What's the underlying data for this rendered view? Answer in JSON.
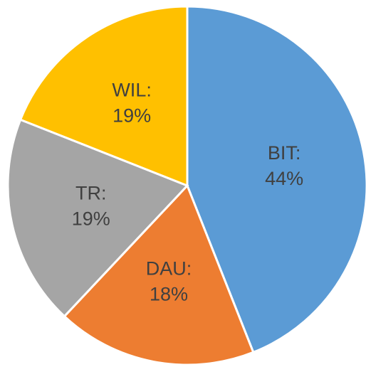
{
  "chart_data": {
    "type": "pie",
    "categories": [
      "BIT:",
      "DAU:",
      "TR:",
      "WIL:"
    ],
    "values": [
      44,
      18,
      19,
      19
    ],
    "value_labels": [
      "44%",
      "18%",
      "19%",
      "19%"
    ],
    "colors": [
      "#5b9bd5",
      "#ed7d31",
      "#a5a5a5",
      "#ffc000"
    ]
  }
}
